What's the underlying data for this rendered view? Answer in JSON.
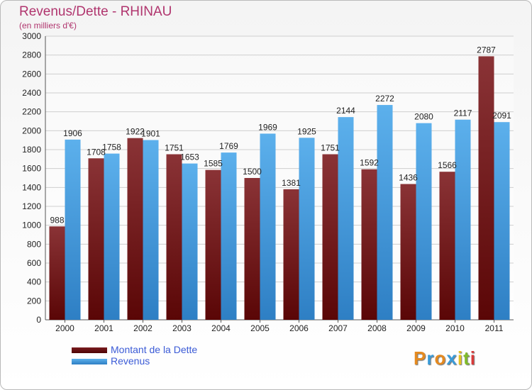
{
  "chart_data": {
    "type": "bar",
    "title": "Revenus/Dette - RHINAU",
    "subtitle": "(en milliers d'€)",
    "categories": [
      "2000",
      "2001",
      "2002",
      "2003",
      "2004",
      "2005",
      "2006",
      "2007",
      "2008",
      "2009",
      "2010",
      "2011"
    ],
    "series": [
      {
        "name": "Montant de la Dette",
        "color": "#6e1116",
        "values": [
          988,
          1708,
          1922,
          1751,
          1585,
          1500,
          1381,
          1751,
          1592,
          1436,
          1566,
          2787
        ]
      },
      {
        "name": "Revenus",
        "color": "#3b9ad9",
        "values": [
          1906,
          1758,
          1901,
          1653,
          1769,
          1969,
          1925,
          2144,
          2272,
          2080,
          2117,
          2091
        ]
      }
    ],
    "ylim": [
      0,
      3000
    ],
    "yticks": [
      0,
      200,
      400,
      600,
      800,
      1000,
      1200,
      1400,
      1600,
      1800,
      2000,
      2200,
      2400,
      2600,
      2800,
      3000
    ],
    "grid": true,
    "legend_position": "bottom-left"
  },
  "logo": {
    "letters": [
      "P",
      "r",
      "o",
      "x",
      "i",
      "t",
      "i"
    ],
    "colors": [
      "#e58a1f",
      "#3a9bd8",
      "#e58a1f",
      "#3a9bd8",
      "#e5c21f",
      "#7fbb2a",
      "#d83a3a"
    ]
  }
}
